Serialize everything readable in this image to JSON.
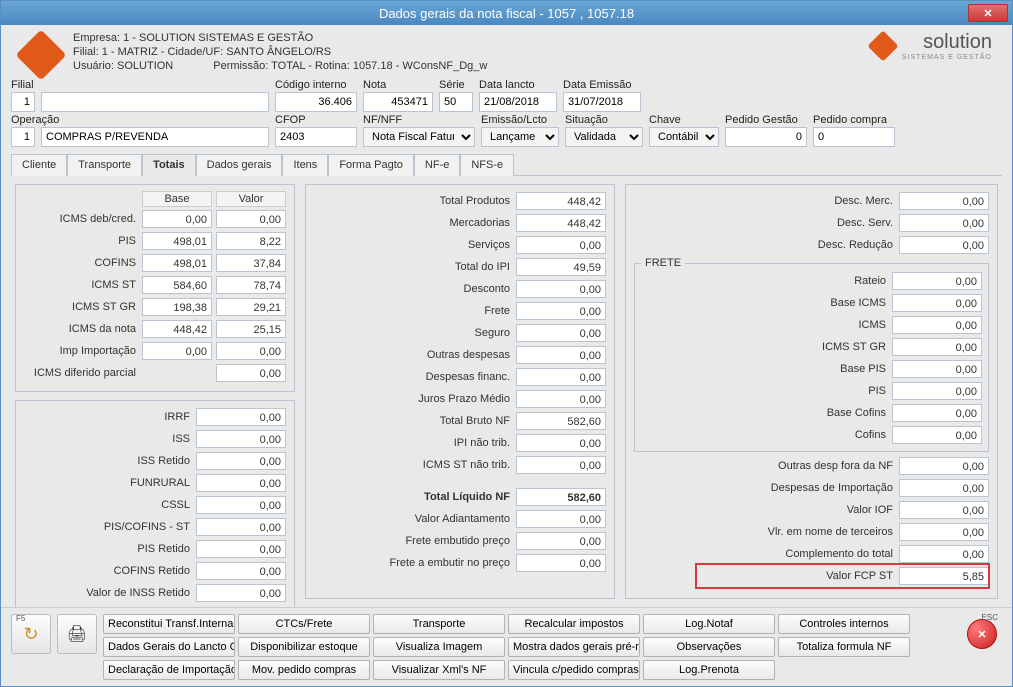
{
  "window": {
    "title": "Dados gerais da nota fiscal - 1057 , 1057.18"
  },
  "header": {
    "empresa": "Empresa: 1 - SOLUTION SISTEMAS E GESTÃO",
    "filial": "Filial: 1 - MATRIZ - Cidade/UF: SANTO ÂNGELO/RS",
    "usuario": "Usuário: SOLUTION",
    "permissao": "Permissão: TOTAL - Rotina: 1057.18 - WConsNF_Dg_w",
    "brand": "solution",
    "brand_sub": "SISTEMAS E GESTÃO"
  },
  "fields1": {
    "filial_lbl": "Filial",
    "filial_n": "1",
    "filial_desc": "",
    "codint_lbl": "Código interno",
    "codint": "36.406",
    "nota_lbl": "Nota",
    "nota": "453471",
    "serie_lbl": "Série",
    "serie": "50",
    "datal_lbl": "Data lancto",
    "datal": "21/08/2018",
    "datae_lbl": "Data Emissão",
    "datae": "31/07/2018"
  },
  "fields2": {
    "oper_lbl": "Operação",
    "oper_n": "1",
    "oper_desc": "COMPRAS P/REVENDA",
    "cfop_lbl": "CFOP",
    "cfop": "2403",
    "nfnff_lbl": "NF/NFF",
    "nfnff": "Nota Fiscal Fatura",
    "emiss_lbl": "Emissão/Lcto",
    "emiss": "Lançame",
    "sit_lbl": "Situação",
    "sit": "Validada",
    "chave_lbl": "Chave",
    "chave": "Contábil",
    "pg_lbl": "Pedido Gestão",
    "pg": "0",
    "pc_lbl": "Pedido compra",
    "pc": "0"
  },
  "tabs": [
    "Cliente",
    "Transporte",
    "Totais",
    "Dados gerais",
    "Itens",
    "Forma Pagto",
    "NF-e",
    "NFS-e"
  ],
  "active_tab": 2,
  "p1": {
    "h_base": "Base",
    "h_valor": "Valor",
    "rows": [
      {
        "l": "ICMS deb/cred.",
        "b": "0,00",
        "v": "0,00"
      },
      {
        "l": "PIS",
        "b": "498,01",
        "v": "8,22"
      },
      {
        "l": "COFINS",
        "b": "498,01",
        "v": "37,84"
      },
      {
        "l": "ICMS ST",
        "b": "584,60",
        "v": "78,74"
      },
      {
        "l": "ICMS ST GR",
        "b": "198,38",
        "v": "29,21"
      },
      {
        "l": "ICMS da nota",
        "b": "448,42",
        "v": "25,15"
      },
      {
        "l": "Imp Importação",
        "b": "0,00",
        "v": "0,00"
      }
    ],
    "icms_dif_lbl": "ICMS diferido parcial",
    "icms_dif": "0,00"
  },
  "p1b": [
    {
      "l": "IRRF",
      "v": "0,00"
    },
    {
      "l": "ISS",
      "v": "0,00"
    },
    {
      "l": "ISS Retido",
      "v": "0,00"
    },
    {
      "l": "FUNRURAL",
      "v": "0,00"
    },
    {
      "l": "CSSL",
      "v": "0,00"
    },
    {
      "l": "PIS/COFINS - ST",
      "v": "0,00"
    },
    {
      "l": "PIS Retido",
      "v": "0,00"
    },
    {
      "l": "COFINS Retido",
      "v": "0,00"
    },
    {
      "l": "Valor de INSS Retido",
      "v": "0,00"
    }
  ],
  "p2": [
    {
      "l": "Total Produtos",
      "v": "448,42"
    },
    {
      "l": "Mercadorias",
      "v": "448,42"
    },
    {
      "l": "Serviços",
      "v": "0,00"
    },
    {
      "l": "Total do IPI",
      "v": "49,59"
    },
    {
      "l": "Desconto",
      "v": "0,00"
    },
    {
      "l": "Frete",
      "v": "0,00"
    },
    {
      "l": "Seguro",
      "v": "0,00"
    },
    {
      "l": "Outras despesas",
      "v": "0,00"
    },
    {
      "l": "Despesas financ.",
      "v": "0,00"
    },
    {
      "l": "Juros Prazo Médio",
      "v": "0,00"
    },
    {
      "l": "Total Bruto NF",
      "v": "582,60"
    },
    {
      "l": "IPI não trib.",
      "v": "0,00"
    },
    {
      "l": "ICMS ST não trib.",
      "v": "0,00"
    }
  ],
  "p2b": [
    {
      "l": "Total Líquido NF",
      "v": "582,60",
      "bold": true
    },
    {
      "l": "Valor Adiantamento",
      "v": "0,00"
    },
    {
      "l": "Frete embutido preço",
      "v": "0,00"
    },
    {
      "l": "Frete a embutir no preço",
      "v": "0,00"
    }
  ],
  "p3top": [
    {
      "l": "Desc. Merc.",
      "v": "0,00"
    },
    {
      "l": "Desc. Serv.",
      "v": "0,00"
    },
    {
      "l": "Desc. Redução",
      "v": "0,00"
    }
  ],
  "frete_lbl": "FRETE",
  "frete": [
    {
      "l": "Rateio",
      "v": "0,00"
    },
    {
      "l": "Base ICMS",
      "v": "0,00"
    },
    {
      "l": "ICMS",
      "v": "0,00"
    },
    {
      "l": "ICMS ST GR",
      "v": "0,00"
    },
    {
      "l": "Base PIS",
      "v": "0,00"
    },
    {
      "l": "PIS",
      "v": "0,00"
    },
    {
      "l": "Base Cofins",
      "v": "0,00"
    },
    {
      "l": "Cofins",
      "v": "0,00"
    }
  ],
  "p3bot": [
    {
      "l": "Outras desp fora da NF",
      "v": "0,00"
    },
    {
      "l": "Despesas de Importação",
      "v": "0,00"
    },
    {
      "l": "Valor IOF",
      "v": "0,00"
    },
    {
      "l": "Vlr. em nome de terceiros",
      "v": "0,00"
    },
    {
      "l": "Complemento do total",
      "v": "0,00"
    },
    {
      "l": "Valor FCP ST",
      "v": "5,85"
    }
  ],
  "footer_btns": [
    "Reconstitui Transf.Interna",
    "CTCs/Frete",
    "Transporte",
    "Recalcular impostos",
    "Log.Notaf",
    "Controles internos",
    "Dados Gerais do Lancto Ctb",
    "Disponibilizar estoque",
    "Visualiza Imagem",
    "Mostra dados gerais pré-nota",
    "Observações",
    "Totaliza formula NF",
    "Declaração de Importação",
    "Mov. pedido compras",
    "Visualizar Xml's NF",
    "Vincula c/pedido compras",
    "Log.Prenota"
  ],
  "f5": "F5",
  "esc": "ESC",
  "colors": {
    "highlight": "#d43b3b"
  }
}
